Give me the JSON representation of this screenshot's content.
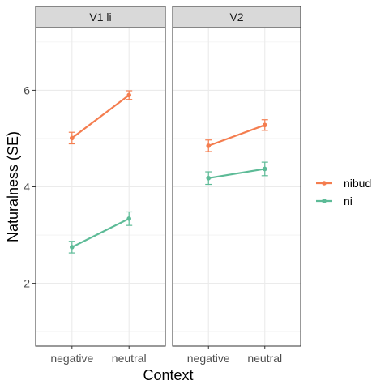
{
  "chart_data": {
    "type": "line",
    "xlabel": "Context",
    "ylabel": "Naturalness (SE)",
    "categories": [
      "negative",
      "neutral"
    ],
    "ylim": [
      0.7,
      7.3
    ],
    "yticks": [
      2,
      4,
      6
    ],
    "grid": true,
    "legend_position": "right",
    "panels": [
      {
        "title": "V1 li",
        "series": [
          {
            "name": "nibud",
            "values": [
              5.01,
              5.9
            ],
            "se": [
              0.12,
              0.09
            ]
          },
          {
            "name": "ni",
            "values": [
              2.75,
              3.34
            ],
            "se": [
              0.12,
              0.14
            ]
          }
        ]
      },
      {
        "title": "V2",
        "series": [
          {
            "name": "nibud",
            "values": [
              4.85,
              5.28
            ],
            "se": [
              0.12,
              0.11
            ]
          },
          {
            "name": "ni",
            "values": [
              4.18,
              4.37
            ],
            "se": [
              0.13,
              0.14
            ]
          }
        ]
      }
    ],
    "colors": {
      "nibud": "#F47D4F",
      "ni": "#5DBB97"
    }
  },
  "colors": {
    "strip_fill": "#d9d9d9",
    "grid": "#ebebeb",
    "panel_border": "#333333"
  }
}
